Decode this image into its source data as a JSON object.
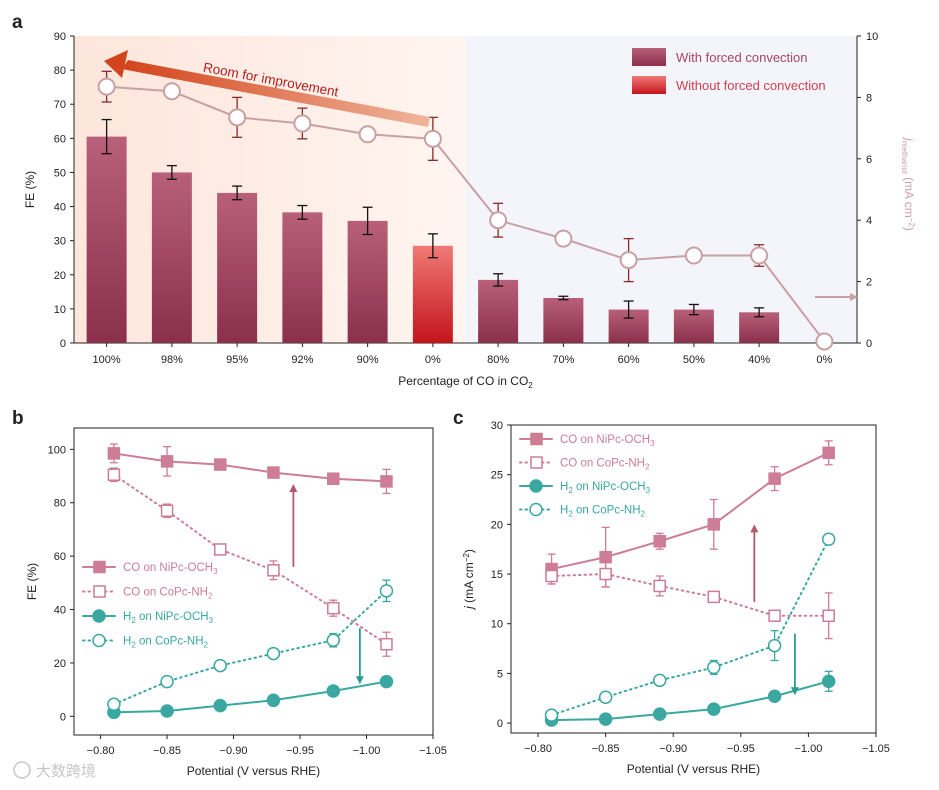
{
  "watermark": "大数跨境",
  "chart_data": [
    {
      "panel": "a",
      "type": "bar",
      "xlabel": "Percentage of CO in CO",
      "xlabel_sub": "2",
      "ylabel": "FE (%)",
      "ylim": [
        0,
        90
      ],
      "yticks": [
        0,
        10,
        20,
        30,
        40,
        50,
        60,
        70,
        80,
        90
      ],
      "y2label": "j",
      "y2label_sub": "methanol",
      "y2label_unit": "(mA cm",
      "y2label_sup": "−2",
      "y2label_close": ")",
      "y2lim": [
        0,
        10
      ],
      "y2ticks": [
        0,
        2,
        4,
        6,
        8,
        10
      ],
      "categories": [
        "100%",
        "98%",
        "95%",
        "92%",
        "90%",
        "0%",
        "80%",
        "70%",
        "60%",
        "50%",
        "40%",
        "0%"
      ],
      "legend": [
        {
          "name": "With forced convection",
          "color": "#a8455f"
        },
        {
          "name": "Without forced convection",
          "color": "#e04646"
        }
      ],
      "legend_text_color": "#a8455f",
      "legend_text_color2": "#d04050",
      "annotation": "Room for improvement",
      "bars": {
        "values": [
          60.5,
          50,
          44,
          38.3,
          35.8,
          28.5,
          18.5,
          13.2,
          9.8,
          9.8,
          9.0,
          null
        ],
        "errors": [
          5,
          2,
          2,
          2,
          4,
          3.5,
          1.8,
          0.5,
          2.5,
          1.5,
          1.3,
          null
        ],
        "highlight_index": 5
      },
      "line": {
        "name": "j_methanol",
        "values": [
          8.35,
          8.2,
          7.35,
          7.15,
          6.8,
          6.65,
          4.0,
          3.4,
          2.7,
          2.85,
          2.85,
          0.05
        ],
        "errors": [
          0.5,
          0.2,
          0.65,
          0.5,
          0.2,
          0.7,
          0.55,
          0.2,
          0.7,
          0.2,
          0.35,
          0.1
        ],
        "color": "#c9a0a3"
      },
      "shading": {
        "left_color": "#fdece6",
        "right_color": "#f3f5fa"
      }
    },
    {
      "panel": "b",
      "type": "line",
      "xlabel": "Potential (V versus RHE)",
      "ylabel": "FE (%)",
      "xlim": [
        -0.78,
        -1.05
      ],
      "ylim": [
        -7,
        108
      ],
      "xticks": [
        -0.8,
        -0.85,
        -0.9,
        -0.95,
        -1.0,
        -1.05
      ],
      "xticklabels": [
        "−0.80",
        "−0.85",
        "−0.90",
        "−0.95",
        "−1.00",
        "−1.05"
      ],
      "yticks": [
        0,
        20,
        40,
        60,
        80,
        100
      ],
      "x": [
        -0.81,
        -0.85,
        -0.89,
        -0.93,
        -0.975,
        -1.015
      ],
      "series": [
        {
          "name": "CO on NiPc-OCH",
          "sub": "3",
          "style": "solid-square",
          "color": "#cd7d96",
          "values": [
            98.5,
            95.5,
            94.3,
            91.3,
            89,
            88
          ],
          "errors": [
            3.5,
            5.5,
            1.5,
            1.5,
            1.5,
            4.5
          ]
        },
        {
          "name": "CO on CoPc-NH",
          "sub": "2",
          "style": "dotted-open-square",
          "color": "#cd7d96",
          "values": [
            90.5,
            77,
            62.5,
            54.7,
            40.5,
            27
          ],
          "errors": [
            2.5,
            2.5,
            1.5,
            3.5,
            3,
            4.5
          ]
        },
        {
          "name": "H",
          "sub": "2",
          "name2": " on NiPc-OCH",
          "sub2": "3",
          "style": "solid-circle",
          "color": "#3aa8a0",
          "values": [
            1.5,
            2,
            4,
            6,
            9.5,
            13
          ],
          "errors": [
            0.5,
            0.5,
            0.5,
            0.8,
            1,
            1.5
          ]
        },
        {
          "name": "H",
          "sub": "2",
          "name2": " on CoPc-NH",
          "sub2": "2",
          "style": "dotted-open-circle",
          "color": "#3aa8a0",
          "values": [
            4.5,
            13,
            19,
            23.5,
            28.5,
            47
          ],
          "errors": [
            1.5,
            1.5,
            1.5,
            1.5,
            2.5,
            4
          ]
        }
      ],
      "arrows": [
        {
          "x": -0.945,
          "y_from": 56,
          "y_to": 87,
          "color": "#b05a6e"
        },
        {
          "x": -0.995,
          "y_from": 33,
          "y_to": 12,
          "color": "#2a9a92"
        }
      ]
    },
    {
      "panel": "c",
      "type": "line",
      "xlabel": "Potential (V versus RHE)",
      "ylabel": "j",
      "ylabel_unit": " (mA cm",
      "ylabel_sup": "−2",
      "ylabel_close": ")",
      "xlim": [
        -0.78,
        -1.05
      ],
      "ylim": [
        -1,
        30
      ],
      "xticks": [
        -0.8,
        -0.85,
        -0.9,
        -0.95,
        -1.0,
        -1.05
      ],
      "xticklabels": [
        "−0.80",
        "−0.85",
        "−0.90",
        "−0.95",
        "−1.00",
        "−1.05"
      ],
      "yticks": [
        0,
        5,
        10,
        15,
        20,
        25,
        30
      ],
      "x": [
        -0.81,
        -0.85,
        -0.89,
        -0.93,
        -0.975,
        -1.015
      ],
      "series": [
        {
          "name": "CO on NiPc-OCH",
          "sub": "3",
          "style": "solid-square",
          "color": "#cd7d96",
          "values": [
            15.5,
            16.7,
            18.3,
            20,
            24.6,
            27.2
          ],
          "errors": [
            1.5,
            3,
            0.8,
            2.5,
            1.2,
            1.2
          ]
        },
        {
          "name": "CO on CoPc-NH",
          "sub": "2",
          "style": "dotted-open-square",
          "color": "#cd7d96",
          "values": [
            14.8,
            15,
            13.8,
            12.7,
            10.8,
            10.8
          ],
          "errors": [
            0.8,
            1.3,
            1,
            0.5,
            0.5,
            2.3
          ]
        },
        {
          "name": "H",
          "sub": "2",
          "name2": " on NiPc-OCH",
          "sub2": "3",
          "style": "solid-circle",
          "color": "#3aa8a0",
          "values": [
            0.3,
            0.4,
            0.9,
            1.4,
            2.7,
            4.2
          ],
          "errors": [
            0.2,
            0.2,
            0.3,
            0.3,
            0.4,
            1
          ]
        },
        {
          "name": "H",
          "sub": "2",
          "name2": " on CoPc-NH",
          "sub2": "2",
          "style": "dotted-open-circle",
          "color": "#3aa8a0",
          "values": [
            0.8,
            2.6,
            4.3,
            5.6,
            7.8,
            18.5
          ],
          "errors": [
            0.5,
            0.5,
            0.5,
            0.7,
            1.5,
            0.5
          ]
        }
      ],
      "arrows": [
        {
          "x": -0.96,
          "y_from": 12.2,
          "y_to": 20,
          "color": "#b05a6e"
        },
        {
          "x": -0.99,
          "y_from": 9,
          "y_to": 2.8,
          "color": "#2a9a92"
        }
      ]
    }
  ]
}
